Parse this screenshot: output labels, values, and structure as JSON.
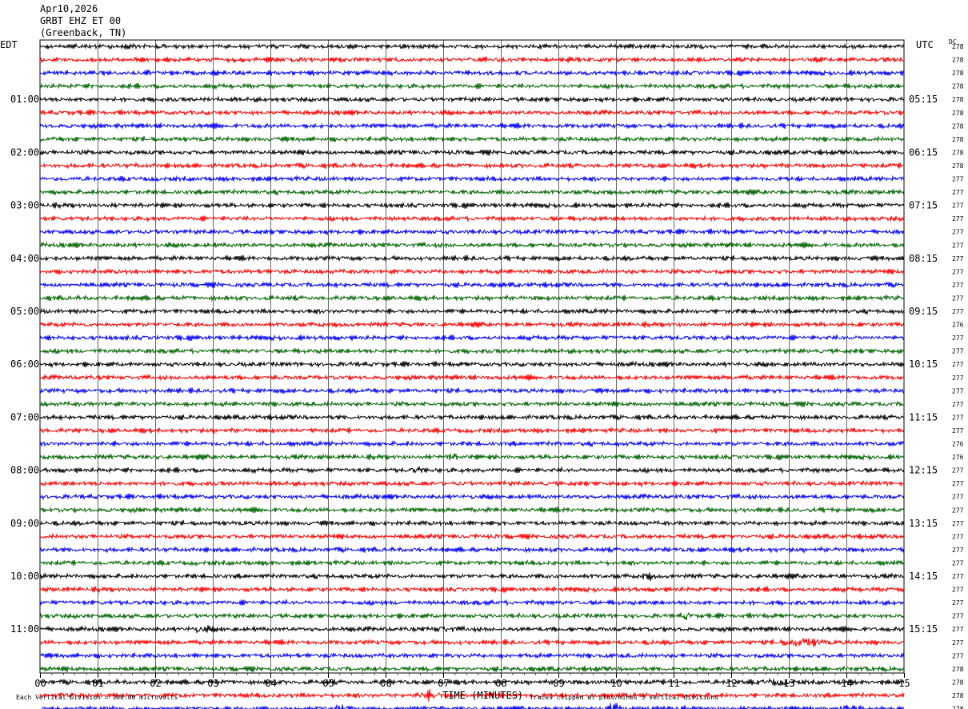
{
  "header": {
    "date": "Apr10,2026",
    "station": "GRBT EHZ ET 00",
    "location": "(Greenback, TN)"
  },
  "left_zone": "EDT",
  "right_zone": "UTC",
  "dc_label": "DC",
  "footer": {
    "scale": "Each Vertical Division =  100.00 microvolts",
    "clip": "Traces clipped at plus/minus 5 vertical divisions"
  },
  "colors": {
    "trace": [
      "#000000",
      "#ff0000",
      "#0000ff",
      "#006400"
    ],
    "grid": "#000000"
  },
  "chart_data": {
    "type": "line",
    "xlabel": "TIME (MINUTES)",
    "xlim": [
      0,
      15
    ],
    "x_ticks": [
      "00",
      "01",
      "02",
      "03",
      "04",
      "05",
      "06",
      "07",
      "08",
      "09",
      "10",
      "11",
      "12",
      "13",
      "14",
      "15"
    ],
    "rows_per_hour": 4,
    "left_hour_labels": [
      "01:00",
      "02:00",
      "03:00",
      "04:00",
      "05:00",
      "06:00",
      "07:00",
      "08:00",
      "09:00",
      "10:00",
      "11:00"
    ],
    "right_hour_labels": [
      "05:15",
      "06:15",
      "07:15",
      "08:15",
      "09:15",
      "10:15",
      "11:15",
      "12:15",
      "13:15",
      "14:15",
      "15:15"
    ],
    "dc_offsets": [
      "278",
      "278",
      "278",
      "278",
      "278",
      "278",
      "278",
      "278",
      "278",
      "278",
      "277",
      "277",
      "277",
      "277",
      "277",
      "277",
      "277",
      "277",
      "277",
      "277",
      "277",
      "276",
      "277",
      "277",
      "277",
      "277",
      "277",
      "277",
      "277",
      "277",
      "276",
      "276",
      "277",
      "277",
      "277",
      "277",
      "277",
      "277",
      "277",
      "277",
      "277",
      "277",
      "277",
      "277",
      "277",
      "277",
      "277",
      "278",
      "278",
      "278",
      "278",
      "278"
    ],
    "events": [
      {
        "row": 31,
        "start_min": 7.0,
        "end_min": 7.3,
        "amp": 2.2
      },
      {
        "row": 32,
        "start_min": 6.4,
        "end_min": 6.7,
        "amp": 2.0
      },
      {
        "row": 40,
        "start_min": 10.4,
        "end_min": 10.7,
        "amp": 2.0
      },
      {
        "row": 43,
        "start_min": 11.1,
        "end_min": 11.35,
        "amp": 2.2
      },
      {
        "row": 44,
        "start_min": 2.5,
        "end_min": 3.1,
        "amp": 1.8
      },
      {
        "row": 44,
        "start_min": 6.7,
        "end_min": 7.3,
        "amp": 1.8
      },
      {
        "row": 45,
        "start_min": 12.7,
        "end_min": 13.8,
        "amp": 2.4
      },
      {
        "row": 48,
        "start_min": 12.4,
        "end_min": 13.2,
        "amp": 1.8
      },
      {
        "row": 49,
        "start_min": 6.4,
        "end_min": 7.2,
        "amp": 2.3
      },
      {
        "row": 50,
        "start_min": 5.0,
        "end_min": 5.4,
        "amp": 2.5
      },
      {
        "row": 50,
        "start_min": 9.85,
        "end_min": 10.1,
        "amp": 3.0
      },
      {
        "row": 50,
        "start_min": 13.8,
        "end_min": 14.3,
        "amp": 2.3
      },
      {
        "row": 51,
        "start_min": 12.1,
        "end_min": 12.5,
        "amp": 2.0
      }
    ]
  }
}
